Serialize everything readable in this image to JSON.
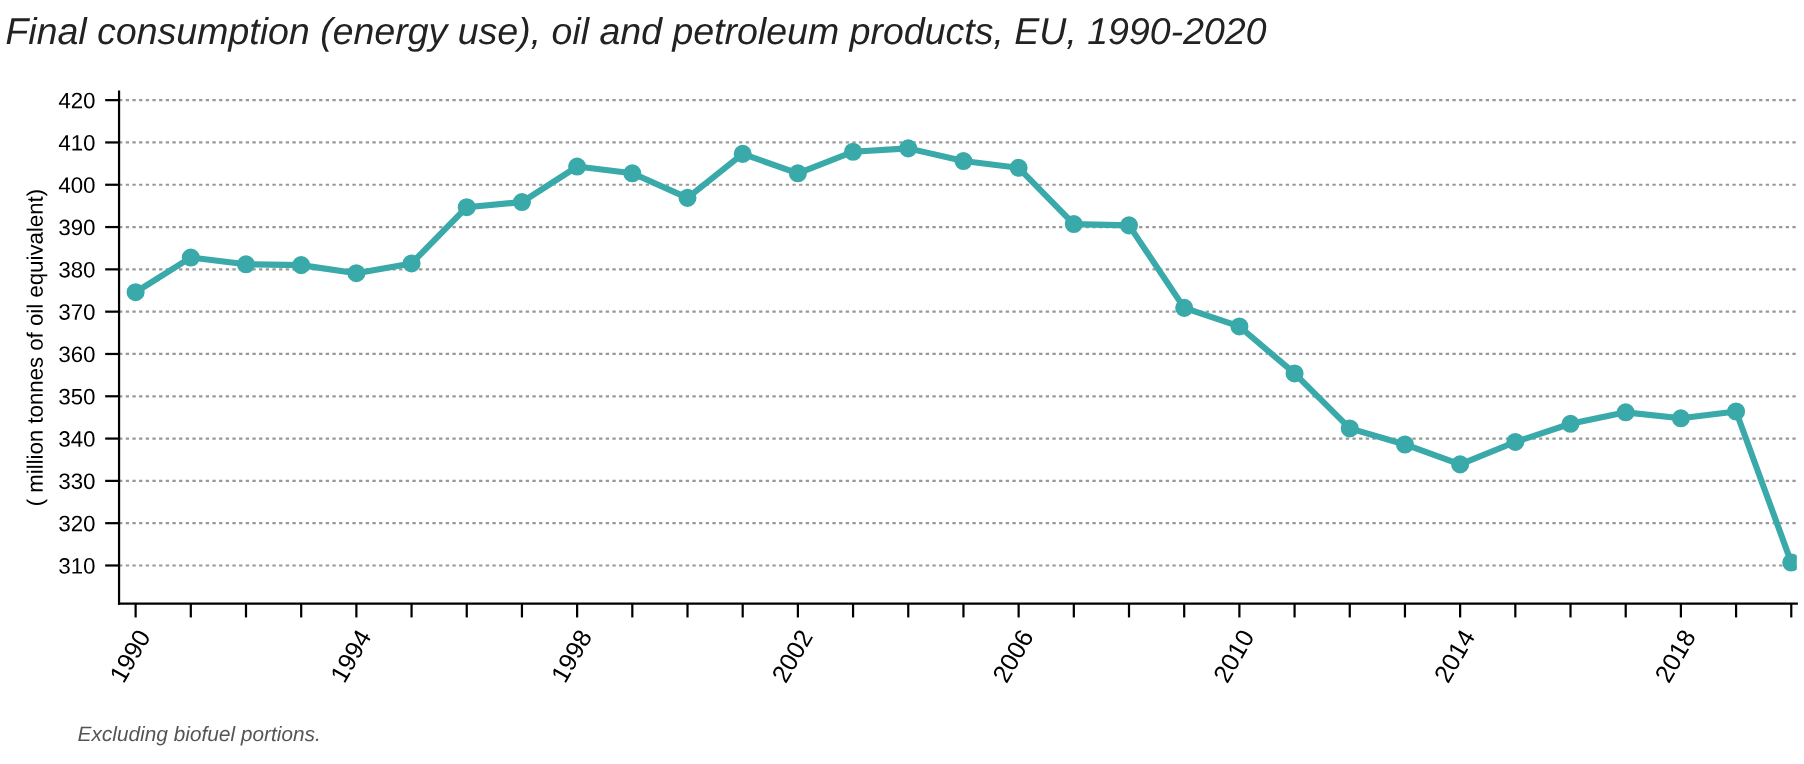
{
  "chart_data": {
    "type": "line",
    "title": "Final consumption (energy use), oil and petroleum products, EU, 1990-2020",
    "ylabel": "( million tonnes of oil equivalent)",
    "annotations": [
      "Excluding biofuel portions."
    ],
    "x": [
      1990,
      1991,
      1992,
      1993,
      1994,
      1995,
      1996,
      1997,
      1998,
      1999,
      2000,
      2001,
      2002,
      2003,
      2004,
      2005,
      2006,
      2007,
      2008,
      2009,
      2010,
      2011,
      2012,
      2013,
      2014,
      2015,
      2016,
      2017,
      2018,
      2019,
      2020
    ],
    "series": [
      {
        "color": "#3aa9a9",
        "values": [
          374.6,
          382.8,
          381.2,
          381.0,
          379.1,
          381.4,
          394.7,
          395.9,
          404.3,
          402.7,
          396.9,
          407.3,
          402.7,
          407.8,
          408.6,
          405.6,
          404.0,
          390.7,
          390.4,
          370.9,
          366.5,
          355.4,
          342.4,
          338.6,
          333.9,
          339.2,
          343.5,
          346.2,
          344.8,
          346.4,
          310.7
        ]
      }
    ],
    "xlim": [
      1989.7,
      2020.1
    ],
    "ylim": [
      301,
      422
    ],
    "xticks": [
      1990,
      {
        "value": 1991,
        "label": null
      },
      {
        "value": 1992,
        "label": null
      },
      {
        "value": 1993,
        "label": null
      },
      1994,
      {
        "value": 1995,
        "label": null
      },
      {
        "value": 1996,
        "label": null
      },
      {
        "value": 1997,
        "label": null
      },
      1998,
      {
        "value": 1999,
        "label": null
      },
      {
        "value": 2000,
        "label": null
      },
      {
        "value": 2001,
        "label": null
      },
      2002,
      {
        "value": 2003,
        "label": null
      },
      {
        "value": 2004,
        "label": null
      },
      {
        "value": 2005,
        "label": null
      },
      2006,
      {
        "value": 2007,
        "label": null
      },
      {
        "value": 2008,
        "label": null
      },
      {
        "value": 2009,
        "label": null
      },
      2010,
      {
        "value": 2011,
        "label": null
      },
      {
        "value": 2012,
        "label": null
      },
      {
        "value": 2013,
        "label": null
      },
      2014,
      {
        "value": 2015,
        "label": null
      },
      {
        "value": 2016,
        "label": null
      },
      {
        "value": 2017,
        "label": null
      },
      2018,
      {
        "value": 2019,
        "label": null
      },
      {
        "value": 2020,
        "label": null
      }
    ],
    "yticks": [
      310,
      320,
      330,
      340,
      350,
      360,
      370,
      380,
      390,
      400,
      410,
      420
    ],
    "grid": "y",
    "marker": "circle",
    "line_style": "solid"
  }
}
